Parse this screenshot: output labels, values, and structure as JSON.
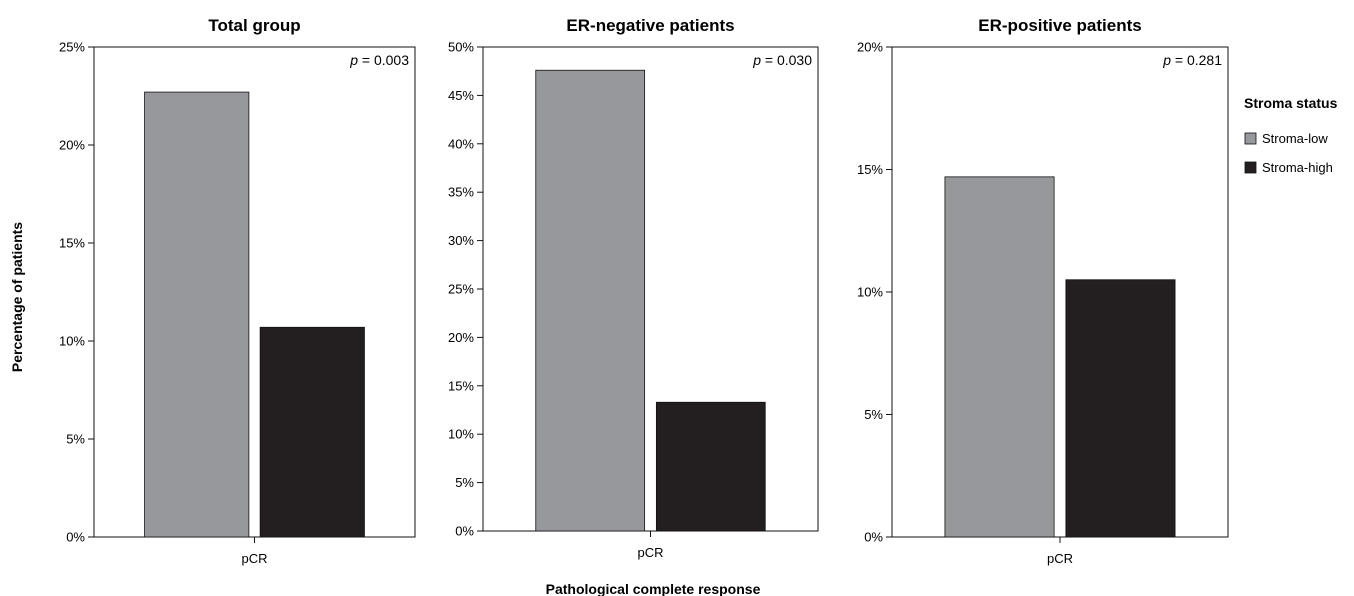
{
  "shared": {
    "ylabel": "Percentage of patients",
    "xlabel": "Pathological complete response"
  },
  "legend": {
    "title": "Stroma status",
    "items": [
      {
        "label": "Stroma-low",
        "color": "#97989c"
      },
      {
        "label": "Stroma-high",
        "color": "#231f20"
      }
    ]
  },
  "chart_data": [
    {
      "type": "bar",
      "title": "Total group",
      "p_italic": "p",
      "p_rest": " = 0.003",
      "categories": [
        "pCR"
      ],
      "series": [
        {
          "name": "Stroma-low",
          "values": [
            22.7
          ]
        },
        {
          "name": "Stroma-high",
          "values": [
            10.7
          ]
        }
      ],
      "ylim": [
        0,
        25
      ],
      "yticks": [
        0,
        5,
        10,
        15,
        20,
        25
      ],
      "ytick_labels": [
        "0%",
        "5%",
        "10%",
        "15%",
        "20%",
        "25%"
      ]
    },
    {
      "type": "bar",
      "title": "ER-negative patients",
      "p_italic": "p",
      "p_rest": " = 0.030",
      "categories": [
        "pCR"
      ],
      "series": [
        {
          "name": "Stroma-low",
          "values": [
            47.6
          ]
        },
        {
          "name": "Stroma-high",
          "values": [
            13.3
          ]
        }
      ],
      "ylim": [
        0,
        50
      ],
      "yticks": [
        0,
        5,
        10,
        15,
        20,
        25,
        30,
        35,
        40,
        45,
        50
      ],
      "ytick_labels": [
        "0%",
        "5%",
        "10%",
        "15%",
        "20%",
        "25%",
        "30%",
        "35%",
        "40%",
        "45%",
        "50%"
      ]
    },
    {
      "type": "bar",
      "title": "ER-positive patients",
      "p_italic": "p",
      "p_rest": " = 0.281",
      "categories": [
        "pCR"
      ],
      "series": [
        {
          "name": "Stroma-low",
          "values": [
            14.7
          ]
        },
        {
          "name": "Stroma-high",
          "values": [
            10.5
          ]
        }
      ],
      "ylim": [
        0,
        20
      ],
      "yticks": [
        0,
        5,
        10,
        15,
        20
      ],
      "ytick_labels": [
        "0%",
        "5%",
        "10%",
        "15%",
        "20%"
      ]
    }
  ]
}
